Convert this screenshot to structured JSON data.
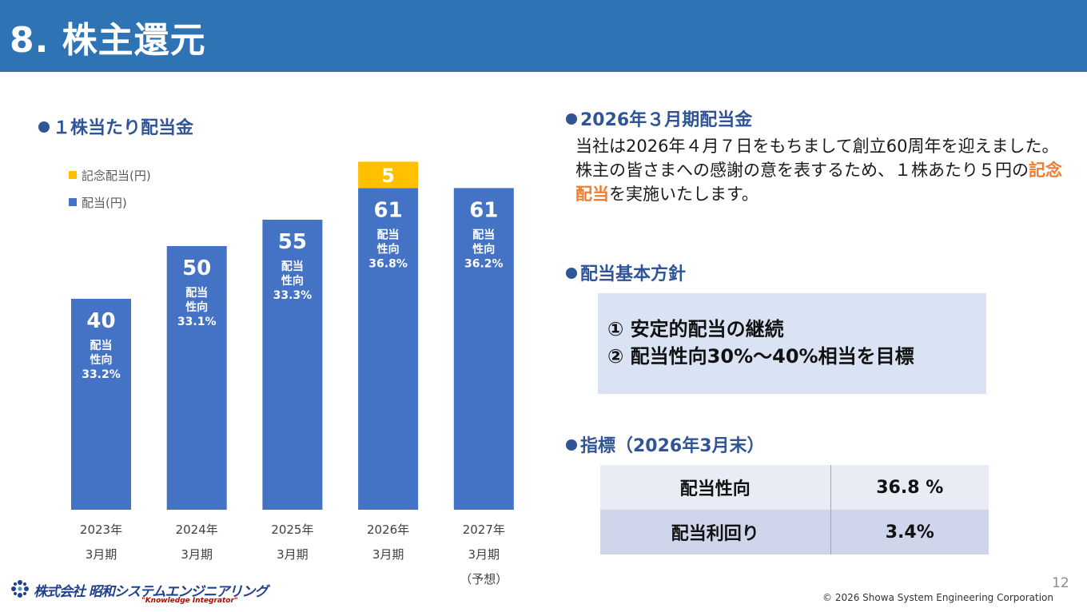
{
  "header": {
    "title": "8. 株主還元"
  },
  "left": {
    "section_title": "１株当たり配当金"
  },
  "chart_data": {
    "type": "bar",
    "stacked": true,
    "categories": [
      "2023年\n3月期",
      "2024年\n3月期",
      "2025年\n3月期",
      "2026年\n3月期",
      "2027年\n3月期\n（予想）"
    ],
    "series": [
      {
        "name": "配当(円)",
        "color": "#4472c4",
        "values": [
          40,
          50,
          55,
          61,
          61
        ]
      },
      {
        "name": "記念配当(円)",
        "color": "#ffc000",
        "values": [
          0,
          0,
          0,
          5,
          0
        ]
      }
    ],
    "payout_labels": [
      "配当\n性向\n33.2%",
      "配当\n性向\n33.1%",
      "配当\n性向\n33.3%",
      "配当\n性向\n36.8%",
      "配当\n性向\n36.2%"
    ],
    "legend": [
      "記念配当(円)",
      "配当(円)"
    ],
    "legend_position": "top-left",
    "grid": false,
    "ylim": [
      0,
      66
    ],
    "title": "",
    "xlabel": "",
    "ylabel": ""
  },
  "right": {
    "dividend_title": "2026年３月期配当金",
    "dividend_text_before": "当社は2026年４月７日をもちまして創立60周年を迎えました。株主の皆さまへの感謝の意を表するため、１株あたり５円の",
    "dividend_highlight": "記念配当",
    "dividend_text_after": "を実施いたします。",
    "policy_title": "配当基本方針",
    "policy_items": [
      "①  安定的配当の継続",
      "②  配当性向30%～40%相当を目標"
    ],
    "metrics_title": "指標（2026年3月末）",
    "metrics": [
      {
        "label": "配当性向",
        "value": "36.8 %"
      },
      {
        "label": "配当利回り",
        "value": "3.4%"
      }
    ]
  },
  "footer": {
    "page_number": "12",
    "copyright": "© 2026 Showa System Engineering Corporation",
    "company_logo_text": "株式会社 昭和システムエンジニアリング",
    "company_tagline": "\"Knowledge Integrator\""
  },
  "colors": {
    "header": "#2e74b5",
    "accent": "#2f5597",
    "bar": "#4472c4",
    "commemorative": "#ffc000",
    "highlight": "#ed7d31"
  }
}
